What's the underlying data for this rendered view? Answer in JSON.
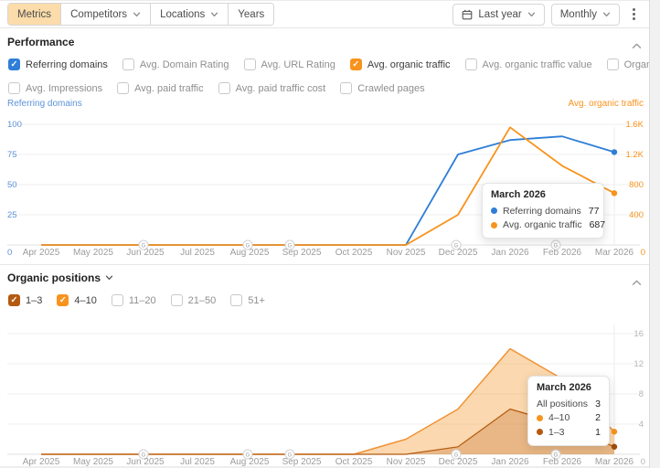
{
  "toolbar": {
    "tabs": [
      {
        "label": "Metrics",
        "active": true,
        "caret": false
      },
      {
        "label": "Competitors",
        "active": false,
        "caret": true
      },
      {
        "label": "Locations",
        "active": false,
        "caret": true
      },
      {
        "label": "Years",
        "active": false,
        "caret": false
      }
    ],
    "date_range": "Last year",
    "granularity": "Monthly",
    "icons": {
      "date_range": "calendar-icon",
      "more": "kebab-menu-icon"
    },
    "active_tab_color": "#fbdcaa"
  },
  "performance": {
    "title": "Performance",
    "metrics": [
      {
        "label": "Referring domains",
        "checked": true,
        "color": "#2f7ed8"
      },
      {
        "label": "Avg. Domain Rating",
        "checked": false
      },
      {
        "label": "Avg. URL Rating",
        "checked": false
      },
      {
        "label": "Avg. organic traffic",
        "checked": true,
        "color": "#f8931d"
      },
      {
        "label": "Avg. organic traffic value",
        "checked": false
      },
      {
        "label": "Organic pages",
        "checked": false
      },
      {
        "label": "Avg. Impressions",
        "checked": false
      },
      {
        "label": "Avg. paid traffic",
        "checked": false
      },
      {
        "label": "Avg. paid traffic cost",
        "checked": false
      },
      {
        "label": "Crawled pages",
        "checked": false
      }
    ]
  },
  "organic_positions": {
    "title": "Organic positions",
    "filters": [
      {
        "label": "1–3",
        "checked": true,
        "color": "#b45a10"
      },
      {
        "label": "4–10",
        "checked": true,
        "color": "#f8931d"
      },
      {
        "label": "11–20",
        "checked": false
      },
      {
        "label": "21–50",
        "checked": false
      },
      {
        "label": "51+",
        "checked": false
      }
    ]
  },
  "chart_data": [
    {
      "type": "line",
      "title": "Performance",
      "x": [
        "Apr 2025",
        "May 2025",
        "Jun 2025",
        "Jul 2025",
        "Aug 2025",
        "Sep 2025",
        "Oct 2025",
        "Nov 2025",
        "Dec 2025",
        "Jan 2026",
        "Feb 2026",
        "Mar 2026"
      ],
      "series": [
        {
          "name": "Referring domains",
          "axis": "left",
          "color": "#2f7ed8",
          "values": [
            0,
            0,
            0,
            0,
            0,
            0,
            0,
            0,
            75,
            87,
            90,
            77
          ]
        },
        {
          "name": "Avg. organic traffic",
          "axis": "right",
          "color": "#f8931d",
          "values": [
            0,
            0,
            0,
            0,
            0,
            0,
            0,
            0,
            400,
            1560,
            1050,
            687
          ]
        }
      ],
      "left_axis": {
        "label": "Referring domains",
        "color": "#5d93d8",
        "ticks": [
          "0",
          "25",
          "50",
          "75",
          "100"
        ],
        "max": 100
      },
      "right_axis": {
        "label": "Avg. organic traffic",
        "color": "#f8931d",
        "ticks": [
          "0",
          "400",
          "800",
          "1.2K",
          "1.6K"
        ],
        "max": 1600
      },
      "google_update_markers": [
        "Jun 2025",
        "Aug 2025",
        "Sep 2025",
        "Dec 2025",
        "Feb 2026"
      ],
      "grid": "horizontal",
      "legend_position": "none",
      "tooltip": {
        "title": "March 2026",
        "rows": [
          {
            "label": "Referring domains",
            "value": "77",
            "color": "#2f7ed8"
          },
          {
            "label": "Avg. organic traffic",
            "value": "687",
            "color": "#f8931d"
          }
        ]
      }
    },
    {
      "type": "area",
      "stacked": true,
      "title": "Organic positions",
      "x": [
        "Apr 2025",
        "May 2025",
        "Jun 2025",
        "Jul 2025",
        "Aug 2025",
        "Sep 2025",
        "Oct 2025",
        "Nov 2025",
        "Dec 2025",
        "Jan 2026",
        "Feb 2026",
        "Mar 2026"
      ],
      "series": [
        {
          "name": "1–3",
          "color": "#b45a10",
          "values": [
            0,
            0,
            0,
            0,
            0,
            0,
            0,
            0,
            1,
            6,
            4,
            1
          ]
        },
        {
          "name": "4–10",
          "color": "#f8931d",
          "values": [
            0,
            0,
            0,
            0,
            0,
            0,
            0,
            2,
            5,
            8,
            6,
            2
          ]
        }
      ],
      "right_axis": {
        "ticks": [
          "0",
          "4",
          "8",
          "12",
          "16"
        ],
        "max": 16,
        "color": "#b5b5b5"
      },
      "google_update_markers": [
        "Jun 2025",
        "Aug 2025",
        "Sep 2025",
        "Dec 2025",
        "Feb 2026"
      ],
      "grid": "horizontal",
      "legend_position": "none",
      "tooltip": {
        "title": "March 2026",
        "rows": [
          {
            "label": "All positions",
            "value": "3"
          },
          {
            "label": "4–10",
            "value": "2",
            "color": "#f8931d"
          },
          {
            "label": "1–3",
            "value": "1",
            "color": "#b45a10"
          }
        ]
      }
    }
  ]
}
